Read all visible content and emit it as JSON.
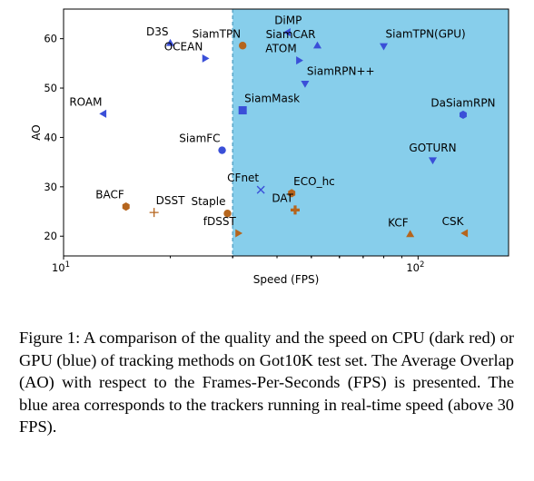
{
  "chart_data": {
    "type": "scatter",
    "xlabel": "Speed (FPS)",
    "ylabel": "AO",
    "xscale": "log",
    "xlim": [
      10,
      180
    ],
    "ylim": [
      16,
      66
    ],
    "xticks": [
      {
        "value": 10,
        "label": "10",
        "sup": "1"
      },
      {
        "value": 100,
        "label": "10",
        "sup": "2"
      }
    ],
    "yticks": [
      20,
      30,
      40,
      50,
      60
    ],
    "realtime_region": {
      "from_fps": 30,
      "color": "#87ceeb"
    },
    "colors": {
      "cpu": "#b5651d",
      "gpu": "#3a4fd8"
    },
    "points": [
      {
        "name": "DiMP",
        "fps": 43,
        "ao": 61.3,
        "device": "gpu",
        "marker": "triangle-left",
        "label_pos": "above"
      },
      {
        "name": "D3S",
        "fps": 20,
        "ao": 59.0,
        "device": "gpu",
        "marker": "triangle-up",
        "label_pos": "above-left"
      },
      {
        "name": "SiamTPN",
        "fps": 32,
        "ao": 58.6,
        "device": "cpu",
        "marker": "circle",
        "label_pos": "above-left"
      },
      {
        "name": "SiamCAR",
        "fps": 52,
        "ao": 58.5,
        "device": "gpu",
        "marker": "triangle-up",
        "label_pos": "above-left"
      },
      {
        "name": "SiamTPN(GPU)",
        "fps": 80,
        "ao": 58.6,
        "device": "gpu",
        "marker": "triangle-down",
        "label_pos": "above-right"
      },
      {
        "name": "OCEAN",
        "fps": 25,
        "ao": 56.0,
        "device": "gpu",
        "marker": "triangle-right",
        "label_pos": "above-left"
      },
      {
        "name": "ATOM",
        "fps": 46,
        "ao": 55.6,
        "device": "gpu",
        "marker": "triangle-right",
        "label_pos": "above-left"
      },
      {
        "name": "SiamRPN++",
        "fps": 48,
        "ao": 51.0,
        "device": "gpu",
        "marker": "triangle-down",
        "label_pos": "above-right"
      },
      {
        "name": "ROAM",
        "fps": 13,
        "ao": 44.8,
        "device": "gpu",
        "marker": "triangle-left",
        "label_pos": "above-left"
      },
      {
        "name": "SiamMask",
        "fps": 32,
        "ao": 45.5,
        "device": "gpu",
        "marker": "square",
        "label_pos": "above-right"
      },
      {
        "name": "DaSiamRPN",
        "fps": 134,
        "ao": 44.6,
        "device": "gpu",
        "marker": "hexagon",
        "label_pos": "above"
      },
      {
        "name": "SiamFC",
        "fps": 28,
        "ao": 37.4,
        "device": "gpu",
        "marker": "circle",
        "label_pos": "above-left"
      },
      {
        "name": "GOTURN",
        "fps": 110,
        "ao": 35.5,
        "device": "gpu",
        "marker": "triangle-down",
        "label_pos": "above"
      },
      {
        "name": "CFnet",
        "fps": 36,
        "ao": 29.4,
        "device": "gpu",
        "marker": "x",
        "label_pos": "above-left"
      },
      {
        "name": "ECO_hc",
        "fps": 44,
        "ao": 28.7,
        "device": "cpu",
        "marker": "hexagon",
        "label_pos": "above-right"
      },
      {
        "name": "DAT",
        "fps": 45,
        "ao": 25.3,
        "device": "cpu",
        "marker": "plus-filled",
        "label_pos": "above-left"
      },
      {
        "name": "BACF",
        "fps": 15,
        "ao": 26.0,
        "device": "cpu",
        "marker": "hexagon",
        "label_pos": "above-left"
      },
      {
        "name": "DSST",
        "fps": 18,
        "ao": 24.8,
        "device": "cpu",
        "marker": "plus",
        "label_pos": "above-right"
      },
      {
        "name": "Staple",
        "fps": 29,
        "ao": 24.6,
        "device": "cpu",
        "marker": "circle",
        "label_pos": "above-left"
      },
      {
        "name": "fDSST",
        "fps": 31,
        "ao": 20.6,
        "device": "cpu",
        "marker": "triangle-right",
        "label_pos": "above-left"
      },
      {
        "name": "KCF",
        "fps": 95,
        "ao": 20.3,
        "device": "cpu",
        "marker": "triangle-up",
        "label_pos": "above-left"
      },
      {
        "name": "CSK",
        "fps": 136,
        "ao": 20.6,
        "device": "cpu",
        "marker": "triangle-left",
        "label_pos": "above-left"
      }
    ]
  },
  "caption": "Figure 1: A comparison of the quality and the speed on CPU (dark red) or GPU (blue) of tracking methods on Got10K test set. The Average Overlap (AO) with respect to the Frames-Per-Seconds (FPS) is presented. The blue area corresponds to the trackers running in real-time speed (above 30 FPS)."
}
